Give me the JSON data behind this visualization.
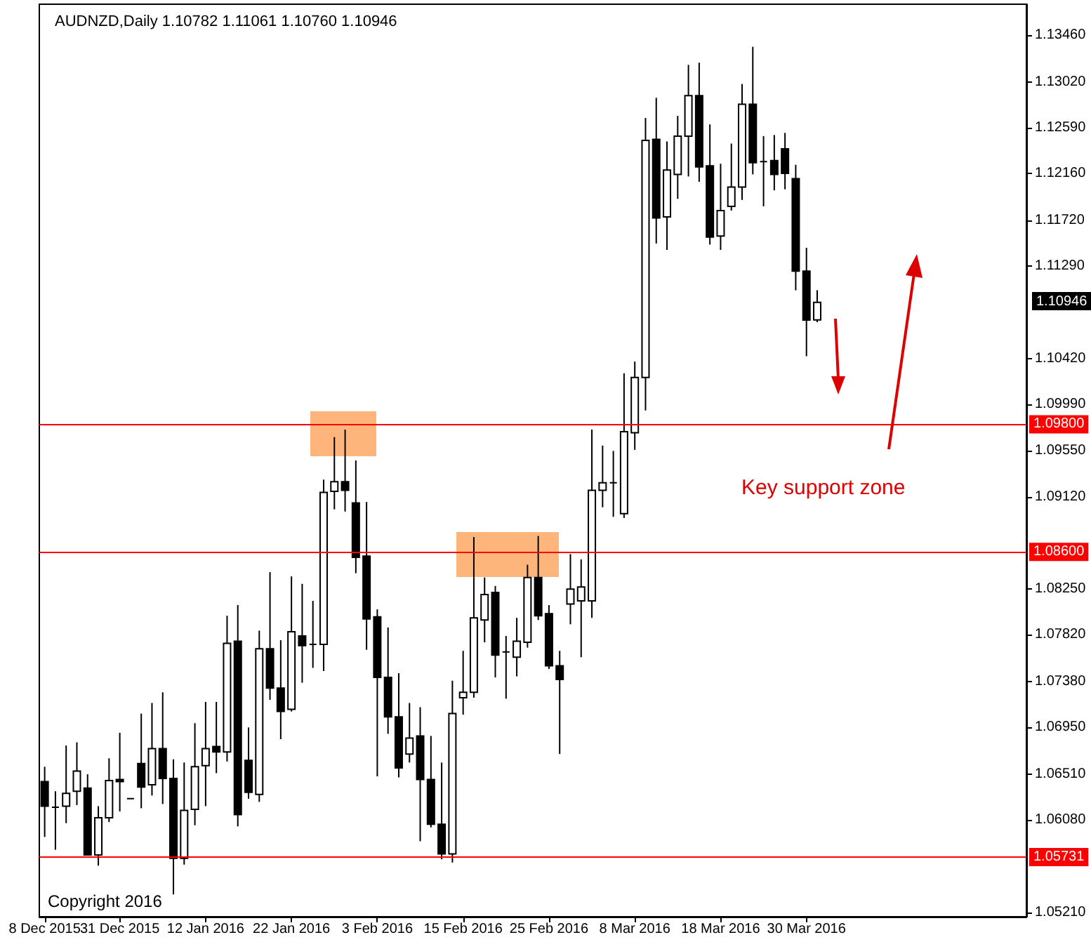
{
  "chart_data": {
    "type": "candlestick",
    "title": "AUDNZD,Daily 1.10782 1.11061 1.10760 1.10946",
    "categories": [
      "8 Dec 2015",
      null,
      null,
      null,
      null,
      null,
      null,
      "31 Dec 2015",
      null,
      null,
      null,
      null,
      null,
      null,
      null,
      "12 Jan 2016",
      null,
      null,
      null,
      null,
      null,
      null,
      null,
      "22 Jan 2016",
      null,
      null,
      null,
      null,
      null,
      null,
      null,
      "3 Feb 2016",
      null,
      null,
      null,
      null,
      null,
      null,
      null,
      "15 Feb 2016",
      null,
      null,
      null,
      null,
      null,
      null,
      null,
      "25 Feb 2016",
      null,
      null,
      null,
      null,
      null,
      null,
      null,
      "8 Mar 2016",
      null,
      null,
      null,
      null,
      null,
      null,
      null,
      "18 Mar 2016",
      null,
      null,
      null,
      null,
      null,
      null,
      null,
      "30 Mar 2016",
      null,
      null,
      null,
      null,
      null,
      null,
      null,
      null,
      null,
      null,
      null,
      null,
      null,
      null,
      null,
      null,
      null,
      null,
      null,
      null
    ],
    "ohlc": [
      [
        1.0644,
        1.0658,
        1.0592,
        1.0621
      ],
      [
        1.062,
        1.0635,
        1.058,
        1.062
      ],
      [
        1.0621,
        1.0678,
        1.0605,
        1.0633
      ],
      [
        1.0635,
        1.0681,
        1.0622,
        1.0654
      ],
      [
        1.0638,
        1.0651,
        1.0575,
        1.0575
      ],
      [
        1.0575,
        1.0621,
        1.0565,
        1.061
      ],
      [
        1.061,
        1.0666,
        1.0606,
        1.0645
      ],
      [
        1.0646,
        1.069,
        1.0616,
        1.0644
      ],
      [
        1.0628,
        1.0628,
        1.0628,
        1.0628
      ],
      [
        1.0661,
        1.0708,
        1.0619,
        1.0639
      ],
      [
        1.0641,
        1.0718,
        1.0631,
        1.0675
      ],
      [
        1.0675,
        1.0728,
        1.0623,
        1.0647
      ],
      [
        1.0647,
        1.0665,
        1.0538,
        1.0572
      ],
      [
        1.0572,
        1.0662,
        1.0566,
        1.0617
      ],
      [
        1.0618,
        1.0699,
        1.0603,
        1.0658
      ],
      [
        1.0659,
        1.0719,
        1.0621,
        1.0675
      ],
      [
        1.0677,
        1.0719,
        1.0652,
        1.0672
      ],
      [
        1.0672,
        1.08,
        1.0663,
        1.0774
      ],
      [
        1.0776,
        1.081,
        1.0602,
        1.0613
      ],
      [
        1.0664,
        1.0695,
        1.0628,
        1.0634
      ],
      [
        1.0632,
        1.0786,
        1.0625,
        1.0769
      ],
      [
        1.0769,
        1.0841,
        1.0721,
        1.0732
      ],
      [
        1.0732,
        1.0777,
        1.0684,
        1.071
      ],
      [
        1.0712,
        1.0837,
        1.071,
        1.0785
      ],
      [
        1.0781,
        1.083,
        1.0737,
        1.0772
      ],
      [
        1.0773,
        1.0814,
        1.0751,
        1.0773
      ],
      [
        1.0773,
        1.0928,
        1.0748,
        1.0916
      ],
      [
        1.0917,
        1.0968,
        1.09,
        1.0926
      ],
      [
        1.0926,
        1.0975,
        1.0898,
        1.0918
      ],
      [
        1.0906,
        1.0946,
        1.084,
        1.0855
      ],
      [
        1.0856,
        1.0907,
        1.0768,
        1.0797
      ],
      [
        1.0799,
        1.0806,
        1.0649,
        1.0742
      ],
      [
        1.0742,
        1.0789,
        1.0689,
        1.0705
      ],
      [
        1.0705,
        1.0746,
        1.0648,
        1.0657
      ],
      [
        1.067,
        1.0718,
        1.0662,
        1.0685
      ],
      [
        1.0687,
        1.0714,
        1.0588,
        1.0646
      ],
      [
        1.0646,
        1.0687,
        1.0601,
        1.0604
      ],
      [
        1.0604,
        1.0662,
        1.0571,
        1.0576
      ],
      [
        1.0576,
        1.0739,
        1.0568,
        1.0708
      ],
      [
        1.0723,
        1.0767,
        1.0707,
        1.0728
      ],
      [
        1.0728,
        1.0874,
        1.0723,
        1.0798
      ],
      [
        1.0796,
        1.0836,
        1.0775,
        1.082
      ],
      [
        1.0822,
        1.0828,
        1.0742,
        1.0763
      ],
      [
        1.0766,
        1.0781,
        1.0722,
        1.0766
      ],
      [
        1.0761,
        1.0798,
        1.0743,
        1.0776
      ],
      [
        1.0775,
        1.0848,
        1.077,
        1.0836
      ],
      [
        1.0836,
        1.0875,
        1.0796,
        1.08
      ],
      [
        1.0802,
        1.081,
        1.075,
        1.0753
      ],
      [
        1.0753,
        1.0767,
        1.067,
        1.074
      ],
      [
        1.0811,
        1.0858,
        1.0792,
        1.0825
      ],
      [
        1.0814,
        1.0853,
        1.0761,
        1.0827
      ],
      [
        1.0814,
        1.0975,
        1.0798,
        1.0918
      ],
      [
        1.0918,
        1.096,
        1.0902,
        1.0925
      ],
      [
        1.0925,
        1.0955,
        1.0893,
        1.0925
      ],
      [
        1.0896,
        1.1028,
        1.0892,
        1.0973
      ],
      [
        1.0972,
        1.1039,
        1.0956,
        1.1024
      ],
      [
        1.1024,
        1.1268,
        1.0993,
        1.1247
      ],
      [
        1.1248,
        1.1287,
        1.115,
        1.1174
      ],
      [
        1.1175,
        1.1246,
        1.1144,
        1.1219
      ],
      [
        1.1215,
        1.127,
        1.1192,
        1.1251
      ],
      [
        1.1251,
        1.1318,
        1.1213,
        1.1289
      ],
      [
        1.1289,
        1.132,
        1.1208,
        1.1222
      ],
      [
        1.1223,
        1.1262,
        1.1149,
        1.1156
      ],
      [
        1.1157,
        1.1225,
        1.1144,
        1.1181
      ],
      [
        1.1185,
        1.1244,
        1.1181,
        1.1203
      ],
      [
        1.1203,
        1.13,
        1.1191,
        1.1281
      ],
      [
        1.1281,
        1.1335,
        1.1215,
        1.1226
      ],
      [
        1.1227,
        1.1251,
        1.1185,
        1.1227
      ],
      [
        1.1228,
        1.1252,
        1.12,
        1.1215
      ],
      [
        1.1239,
        1.1254,
        1.1201,
        1.1216
      ],
      [
        1.1211,
        1.1224,
        1.1106,
        1.1124
      ],
      [
        1.1124,
        1.1146,
        1.1044,
        1.1078
      ],
      [
        1.10782,
        1.11061,
        1.1076,
        1.10946
      ],
      null,
      null,
      null,
      null,
      null,
      null,
      null,
      null,
      null,
      null,
      null,
      null,
      null,
      null,
      null,
      null,
      null,
      null,
      null
    ],
    "ylim": [
      1.0517,
      1.1375
    ],
    "yticks": [
      {
        "value": 1.1346,
        "label": "1.13460"
      },
      {
        "value": 1.1302,
        "label": "1.13020"
      },
      {
        "value": 1.1259,
        "label": "1.12590"
      },
      {
        "value": 1.1216,
        "label": "1.12160"
      },
      {
        "value": 1.1172,
        "label": "1.11720"
      },
      {
        "value": 1.1129,
        "label": "1.11290"
      },
      {
        "value": 1.1042,
        "label": "1.10420"
      },
      {
        "value": 1.0999,
        "label": "1.09990"
      },
      {
        "value": 1.0955,
        "label": "1.09550"
      },
      {
        "value": 1.0912,
        "label": "1.09120"
      },
      {
        "value": 1.0825,
        "label": "1.08250"
      },
      {
        "value": 1.0782,
        "label": "1.07820"
      },
      {
        "value": 1.0738,
        "label": "1.07380"
      },
      {
        "value": 1.0695,
        "label": "1.06950"
      },
      {
        "value": 1.0651,
        "label": "1.06510"
      },
      {
        "value": 1.0608,
        "label": "1.06080"
      },
      {
        "value": 1.0521,
        "label": "1.05210"
      }
    ],
    "ref_lines": [
      {
        "axis": "y",
        "value": 1.098,
        "label": "1.09800",
        "color": "#ff0000"
      },
      {
        "axis": "y",
        "value": 1.086,
        "label": "1.08600",
        "color": "#ff0000"
      },
      {
        "axis": "y",
        "value": 1.05731,
        "label": "1.05731",
        "color": "#ff0000"
      }
    ],
    "annotations": [
      "Key support zone",
      "Copyright 2016",
      "1.10946"
    ],
    "grid": false
  }
}
